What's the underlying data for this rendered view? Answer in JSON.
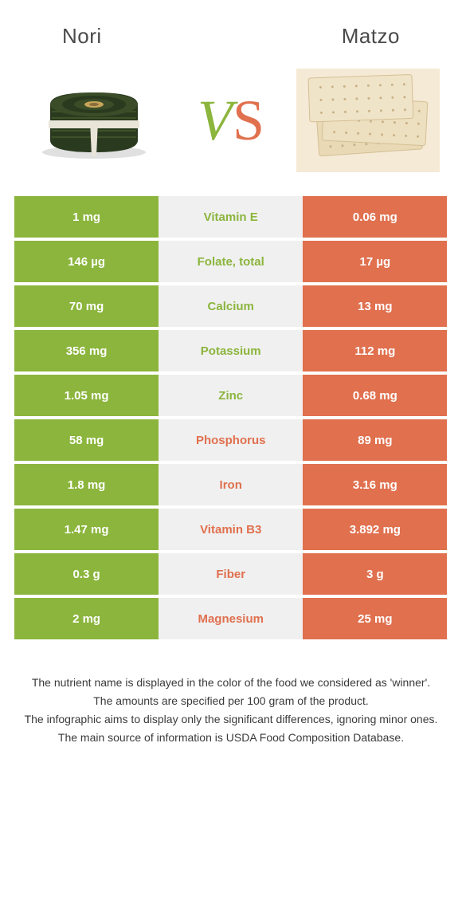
{
  "left_food": {
    "name": "Nori",
    "color": "#8bb53c"
  },
  "right_food": {
    "name": "Matzo",
    "color": "#e0704e"
  },
  "vs": {
    "v_color": "#8bb53c",
    "s_color": "#e0704e",
    "v": "V",
    "s": "S"
  },
  "mid_bg": "#f0f0f0",
  "rows": [
    {
      "left": "1 mg",
      "label": "Vitamin E",
      "right": "0.06 mg",
      "winner": "left"
    },
    {
      "left": "146 µg",
      "label": "Folate, total",
      "right": "17 µg",
      "winner": "left"
    },
    {
      "left": "70 mg",
      "label": "Calcium",
      "right": "13 mg",
      "winner": "left"
    },
    {
      "left": "356 mg",
      "label": "Potassium",
      "right": "112 mg",
      "winner": "left"
    },
    {
      "left": "1.05 mg",
      "label": "Zinc",
      "right": "0.68 mg",
      "winner": "left"
    },
    {
      "left": "58 mg",
      "label": "Phosphorus",
      "right": "89 mg",
      "winner": "right"
    },
    {
      "left": "1.8 mg",
      "label": "Iron",
      "right": "3.16 mg",
      "winner": "right"
    },
    {
      "left": "1.47 mg",
      "label": "Vitamin B3",
      "right": "3.892 mg",
      "winner": "right"
    },
    {
      "left": "0.3 g",
      "label": "Fiber",
      "right": "3 g",
      "winner": "right"
    },
    {
      "left": "2 mg",
      "label": "Magnesium",
      "right": "25 mg",
      "winner": "right"
    }
  ],
  "footer": {
    "line1": "The nutrient name is displayed in the color of the food we considered as 'winner'.",
    "line2": "The amounts are specified per 100 gram of the product.",
    "line3": "The infographic aims to display only the significant differences, ignoring minor ones.",
    "line4": "The main source of information is USDA Food Composition Database."
  }
}
